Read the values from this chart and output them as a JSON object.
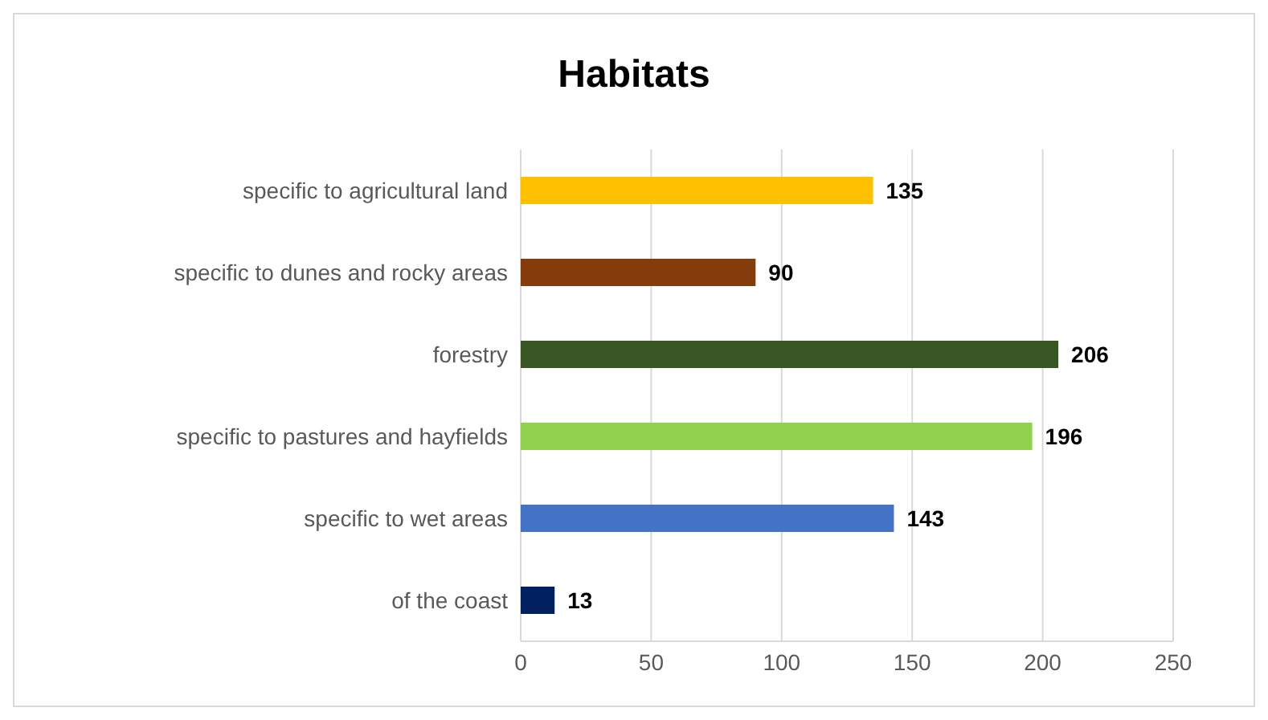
{
  "chart_data": {
    "type": "bar",
    "title": "Habitats",
    "orientation": "horizontal",
    "categories": [
      "specific to agricultural land",
      "specific to dunes and rocky areas",
      "forestry",
      "specific to pastures and hayfields",
      "specific to wet areas",
      "of the coast"
    ],
    "values": [
      135,
      90,
      206,
      196,
      143,
      13
    ],
    "colors": [
      "#ffc000",
      "#843c0c",
      "#375623",
      "#92d050",
      "#4472c4",
      "#002060"
    ],
    "xlim": [
      0,
      250
    ],
    "xticks": [
      0,
      50,
      100,
      150,
      200,
      250
    ],
    "grid": "x",
    "data_labels": true,
    "legend": false
  }
}
